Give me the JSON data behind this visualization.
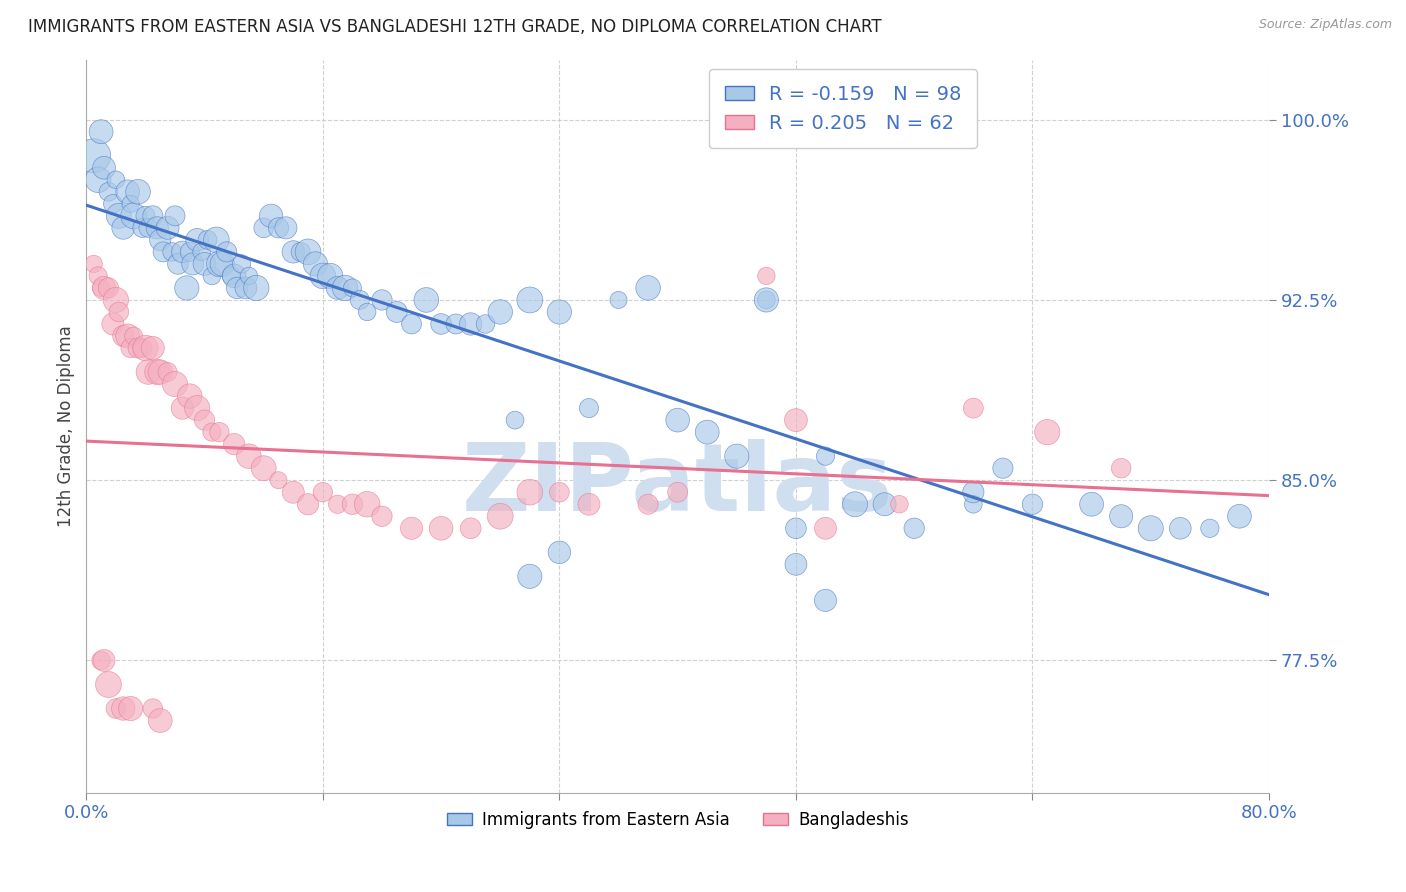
{
  "title": "IMMIGRANTS FROM EASTERN ASIA VS BANGLADESHI 12TH GRADE, NO DIPLOMA CORRELATION CHART",
  "source": "Source: ZipAtlas.com",
  "ylabel": "12th Grade, No Diploma",
  "xlim": [
    0.0,
    0.8
  ],
  "ylim": [
    0.72,
    1.025
  ],
  "yticks": [
    0.775,
    0.85,
    0.925,
    1.0
  ],
  "ytick_labels": [
    "77.5%",
    "85.0%",
    "92.5%",
    "100.0%"
  ],
  "xticks": [
    0.0,
    0.16,
    0.32,
    0.48,
    0.64,
    0.8
  ],
  "blue_R": -0.159,
  "blue_N": 98,
  "pink_R": 0.205,
  "pink_N": 62,
  "blue_color": "#a8c8e8",
  "pink_color": "#f4b0c0",
  "blue_line_color": "#4472c4",
  "pink_line_color": "#e87090",
  "watermark_color": "#d0dff0",
  "legend_label_blue": "Immigrants from Eastern Asia",
  "legend_label_pink": "Bangladeshis",
  "blue_points_x": [
    0.005,
    0.008,
    0.01,
    0.012,
    0.015,
    0.018,
    0.02,
    0.022,
    0.025,
    0.028,
    0.03,
    0.032,
    0.035,
    0.038,
    0.04,
    0.042,
    0.045,
    0.048,
    0.05,
    0.052,
    0.055,
    0.058,
    0.06,
    0.062,
    0.065,
    0.068,
    0.07,
    0.072,
    0.075,
    0.078,
    0.08,
    0.082,
    0.085,
    0.088,
    0.09,
    0.092,
    0.095,
    0.098,
    0.1,
    0.102,
    0.105,
    0.108,
    0.11,
    0.115,
    0.12,
    0.125,
    0.13,
    0.135,
    0.14,
    0.145,
    0.15,
    0.155,
    0.16,
    0.165,
    0.17,
    0.175,
    0.18,
    0.185,
    0.19,
    0.2,
    0.21,
    0.22,
    0.23,
    0.24,
    0.25,
    0.26,
    0.27,
    0.28,
    0.29,
    0.3,
    0.32,
    0.34,
    0.36,
    0.38,
    0.4,
    0.42,
    0.44,
    0.46,
    0.48,
    0.5,
    0.52,
    0.54,
    0.56,
    0.6,
    0.62,
    0.64,
    0.68,
    0.7,
    0.72,
    0.74,
    0.76,
    0.78,
    0.3,
    0.32,
    0.46,
    0.48,
    0.5,
    0.6
  ],
  "blue_points_y": [
    0.985,
    0.975,
    0.995,
    0.98,
    0.97,
    0.965,
    0.975,
    0.96,
    0.955,
    0.97,
    0.965,
    0.96,
    0.97,
    0.955,
    0.96,
    0.955,
    0.96,
    0.955,
    0.95,
    0.945,
    0.955,
    0.945,
    0.96,
    0.94,
    0.945,
    0.93,
    0.945,
    0.94,
    0.95,
    0.945,
    0.94,
    0.95,
    0.935,
    0.95,
    0.94,
    0.94,
    0.945,
    0.935,
    0.935,
    0.93,
    0.94,
    0.93,
    0.935,
    0.93,
    0.955,
    0.96,
    0.955,
    0.955,
    0.945,
    0.945,
    0.945,
    0.94,
    0.935,
    0.935,
    0.93,
    0.93,
    0.93,
    0.925,
    0.92,
    0.925,
    0.92,
    0.915,
    0.925,
    0.915,
    0.915,
    0.915,
    0.915,
    0.92,
    0.875,
    0.925,
    0.92,
    0.88,
    0.925,
    0.93,
    0.875,
    0.87,
    0.86,
    0.925,
    0.83,
    0.86,
    0.84,
    0.84,
    0.83,
    0.84,
    0.855,
    0.84,
    0.84,
    0.835,
    0.83,
    0.83,
    0.83,
    0.835,
    0.81,
    0.82,
    0.925,
    0.815,
    0.8,
    0.845
  ],
  "pink_points_x": [
    0.005,
    0.008,
    0.01,
    0.012,
    0.015,
    0.018,
    0.02,
    0.022,
    0.025,
    0.028,
    0.03,
    0.032,
    0.035,
    0.038,
    0.04,
    0.042,
    0.045,
    0.048,
    0.05,
    0.055,
    0.06,
    0.065,
    0.07,
    0.075,
    0.08,
    0.085,
    0.09,
    0.1,
    0.11,
    0.12,
    0.13,
    0.14,
    0.15,
    0.16,
    0.17,
    0.18,
    0.19,
    0.2,
    0.22,
    0.24,
    0.26,
    0.28,
    0.3,
    0.32,
    0.34,
    0.38,
    0.4,
    0.46,
    0.48,
    0.5,
    0.55,
    0.6,
    0.65,
    0.7,
    0.01,
    0.012,
    0.015,
    0.02,
    0.025,
    0.03,
    0.045,
    0.05
  ],
  "pink_points_y": [
    0.94,
    0.935,
    0.93,
    0.93,
    0.93,
    0.915,
    0.925,
    0.92,
    0.91,
    0.91,
    0.905,
    0.91,
    0.905,
    0.905,
    0.905,
    0.895,
    0.905,
    0.895,
    0.895,
    0.895,
    0.89,
    0.88,
    0.885,
    0.88,
    0.875,
    0.87,
    0.87,
    0.865,
    0.86,
    0.855,
    0.85,
    0.845,
    0.84,
    0.845,
    0.84,
    0.84,
    0.84,
    0.835,
    0.83,
    0.83,
    0.83,
    0.835,
    0.845,
    0.845,
    0.84,
    0.84,
    0.845,
    0.935,
    0.875,
    0.83,
    0.84,
    0.88,
    0.87,
    0.855,
    0.775,
    0.775,
    0.765,
    0.755,
    0.755,
    0.755,
    0.755,
    0.75
  ]
}
